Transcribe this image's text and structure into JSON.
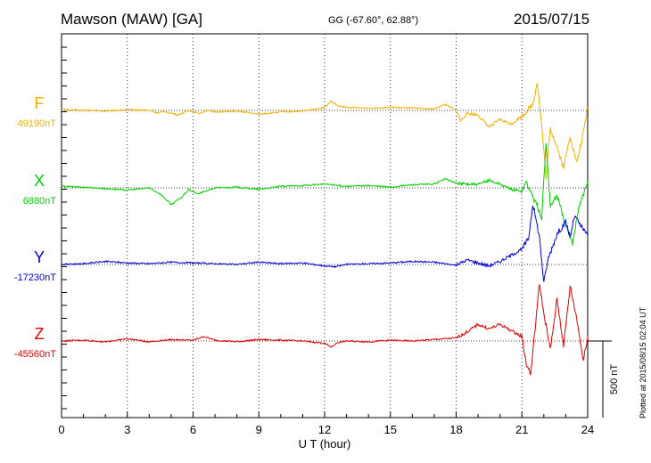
{
  "header": {
    "title": "Mawson (MAW)  [GA]",
    "coords": "GG (-67.60°,  62.88°)",
    "date": "2015/07/15"
  },
  "footer": {
    "plotted": "Plotted at 2015/08/15 02:04 UT"
  },
  "chart_data": {
    "type": "line",
    "xlabel": "U T (hour)",
    "xlim": [
      0,
      24
    ],
    "xticks": [
      "0",
      "3",
      "6",
      "9",
      "12",
      "15",
      "18",
      "21",
      "24"
    ],
    "scale_bar": "500 nT",
    "grid": "dotted vertical every 3 h",
    "series": [
      {
        "name": "F",
        "baseline_label": "49190nT",
        "color": "#f5b000",
        "points": [
          [
            0,
            5
          ],
          [
            1,
            0
          ],
          [
            2,
            -5
          ],
          [
            3,
            5
          ],
          [
            4,
            0
          ],
          [
            4.3,
            -15
          ],
          [
            4.8,
            -10
          ],
          [
            5.3,
            -30
          ],
          [
            5.8,
            0
          ],
          [
            6.3,
            -20
          ],
          [
            6.6,
            0
          ],
          [
            7,
            -10
          ],
          [
            8,
            -5
          ],
          [
            9,
            -25
          ],
          [
            10,
            -10
          ],
          [
            11,
            -5
          ],
          [
            12,
            20
          ],
          [
            12.3,
            60
          ],
          [
            12.6,
            30
          ],
          [
            13,
            20
          ],
          [
            14,
            15
          ],
          [
            15,
            20
          ],
          [
            16,
            15
          ],
          [
            17,
            10
          ],
          [
            17.5,
            40
          ],
          [
            18,
            0
          ],
          [
            18.2,
            -70
          ],
          [
            18.5,
            -20
          ],
          [
            19,
            -30
          ],
          [
            19.5,
            -110
          ],
          [
            20,
            -60
          ],
          [
            20.5,
            -90
          ],
          [
            21,
            -40
          ],
          [
            21.5,
            40
          ],
          [
            21.7,
            190
          ],
          [
            21.9,
            -100
          ],
          [
            22.1,
            -440
          ],
          [
            22.3,
            -120
          ],
          [
            22.6,
            -240
          ],
          [
            22.9,
            -380
          ],
          [
            23.2,
            -170
          ],
          [
            23.5,
            -350
          ],
          [
            23.8,
            -150
          ],
          [
            24,
            20
          ]
        ]
      },
      {
        "name": "X",
        "baseline_label": "6880nT",
        "color": "#00d000",
        "points": [
          [
            0,
            10
          ],
          [
            1,
            5
          ],
          [
            2,
            -5
          ],
          [
            3,
            -15
          ],
          [
            4,
            0
          ],
          [
            4.5,
            -40
          ],
          [
            5,
            -110
          ],
          [
            5.5,
            -60
          ],
          [
            5.8,
            -10
          ],
          [
            6.2,
            -40
          ],
          [
            7,
            0
          ],
          [
            8,
            5
          ],
          [
            9,
            -10
          ],
          [
            10,
            10
          ],
          [
            11,
            15
          ],
          [
            12,
            25
          ],
          [
            13,
            10
          ],
          [
            14,
            15
          ],
          [
            15,
            5
          ],
          [
            16,
            20
          ],
          [
            17,
            25
          ],
          [
            17.5,
            60
          ],
          [
            18,
            30
          ],
          [
            19,
            20
          ],
          [
            19.5,
            50
          ],
          [
            20,
            25
          ],
          [
            20.5,
            -10
          ],
          [
            21,
            -20
          ],
          [
            21.2,
            40
          ],
          [
            21.5,
            -60
          ],
          [
            21.7,
            -120
          ],
          [
            21.9,
            -200
          ],
          [
            22.1,
            300
          ],
          [
            22.3,
            -120
          ],
          [
            22.6,
            -50
          ],
          [
            23,
            -250
          ],
          [
            23.3,
            -370
          ],
          [
            23.6,
            -120
          ],
          [
            24,
            40
          ]
        ]
      },
      {
        "name": "Y",
        "baseline_label": "-17230nT",
        "color": "#0000e0",
        "points": [
          [
            0,
            0
          ],
          [
            1,
            5
          ],
          [
            2,
            20
          ],
          [
            3,
            10
          ],
          [
            4,
            5
          ],
          [
            5,
            15
          ],
          [
            6,
            10
          ],
          [
            7,
            5
          ],
          [
            8,
            0
          ],
          [
            9,
            15
          ],
          [
            10,
            5
          ],
          [
            11,
            10
          ],
          [
            12,
            -10
          ],
          [
            12.5,
            -15
          ],
          [
            13,
            0
          ],
          [
            14,
            5
          ],
          [
            15,
            10
          ],
          [
            16,
            20
          ],
          [
            17,
            15
          ],
          [
            18,
            -5
          ],
          [
            18.5,
            30
          ],
          [
            19,
            10
          ],
          [
            19.5,
            -10
          ],
          [
            20,
            20
          ],
          [
            20.5,
            60
          ],
          [
            21,
            100
          ],
          [
            21.3,
            170
          ],
          [
            21.5,
            400
          ],
          [
            21.8,
            180
          ],
          [
            22,
            -120
          ],
          [
            22.2,
            40
          ],
          [
            22.6,
            200
          ],
          [
            23,
            280
          ],
          [
            23.2,
            180
          ],
          [
            23.4,
            320
          ],
          [
            23.7,
            250
          ],
          [
            24,
            190
          ]
        ]
      },
      {
        "name": "Z",
        "baseline_label": "-45560nT",
        "color": "#e00000",
        "points": [
          [
            0,
            0
          ],
          [
            1,
            5
          ],
          [
            2,
            -5
          ],
          [
            3,
            15
          ],
          [
            4,
            -5
          ],
          [
            5,
            10
          ],
          [
            6,
            5
          ],
          [
            6.5,
            30
          ],
          [
            7,
            5
          ],
          [
            8,
            -5
          ],
          [
            9,
            10
          ],
          [
            10,
            5
          ],
          [
            11,
            0
          ],
          [
            12,
            -15
          ],
          [
            12.3,
            -40
          ],
          [
            12.6,
            -10
          ],
          [
            13,
            0
          ],
          [
            14,
            -5
          ],
          [
            15,
            5
          ],
          [
            16,
            0
          ],
          [
            17,
            10
          ],
          [
            18,
            20
          ],
          [
            18.5,
            60
          ],
          [
            19,
            110
          ],
          [
            19.5,
            80
          ],
          [
            20,
            110
          ],
          [
            20.5,
            70
          ],
          [
            21,
            30
          ],
          [
            21.2,
            -150
          ],
          [
            21.4,
            -220
          ],
          [
            21.6,
            80
          ],
          [
            21.8,
            380
          ],
          [
            22,
            180
          ],
          [
            22.3,
            -60
          ],
          [
            22.6,
            280
          ],
          [
            22.9,
            -30
          ],
          [
            23.2,
            360
          ],
          [
            23.5,
            150
          ],
          [
            23.8,
            -130
          ],
          [
            24,
            30
          ]
        ]
      }
    ]
  }
}
